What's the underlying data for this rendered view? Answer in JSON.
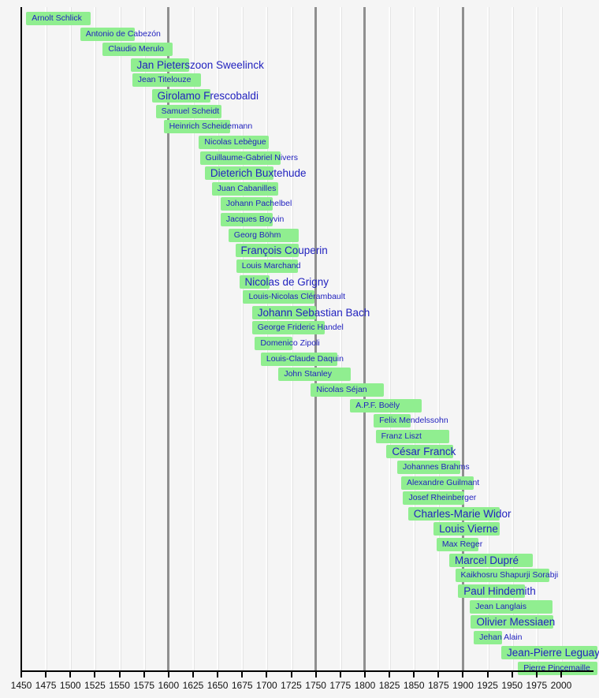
{
  "chart_data": {
    "type": "bar",
    "subtype": "timeline-lifespans",
    "title": "",
    "xlabel": "",
    "ylabel": "",
    "grid": true,
    "x_axis": {
      "start": 1450,
      "end": 2000,
      "step": 25,
      "tick_labels": [
        "1450",
        "1475",
        "1500",
        "1525",
        "1550",
        "1575",
        "1600",
        "1625",
        "1650",
        "1675",
        "1700",
        "1725",
        "1750",
        "1775",
        "1800",
        "1825",
        "1850",
        "1875",
        "1900",
        "1925",
        "1950",
        "1975",
        "2000"
      ]
    },
    "era_divider_years": [
      1600,
      1750,
      1800,
      1900
    ],
    "composers": [
      {
        "name": "Arnolt Schlick",
        "birth": 1455,
        "death": 1521,
        "emphasis": false
      },
      {
        "name": "Antonio de Cabezón",
        "birth": 1510,
        "death": 1566,
        "emphasis": false
      },
      {
        "name": "Claudio Merulo",
        "birth": 1533,
        "death": 1604,
        "emphasis": false
      },
      {
        "name": "Jan Pieterszoon Sweelinck",
        "birth": 1562,
        "death": 1621,
        "emphasis": true
      },
      {
        "name": "Jean Titelouze",
        "birth": 1563,
        "death": 1633,
        "emphasis": false
      },
      {
        "name": "Girolamo Frescobaldi",
        "birth": 1583,
        "death": 1643,
        "emphasis": true
      },
      {
        "name": "Samuel Scheidt",
        "birth": 1587,
        "death": 1654,
        "emphasis": false
      },
      {
        "name": "Heinrich Scheidemann",
        "birth": 1595,
        "death": 1663,
        "emphasis": false
      },
      {
        "name": "Nicolas Lebègue",
        "birth": 1631,
        "death": 1702,
        "emphasis": false
      },
      {
        "name": "Guillaume-Gabriel Nivers",
        "birth": 1632,
        "death": 1714,
        "emphasis": false
      },
      {
        "name": "Dieterich Buxtehude",
        "birth": 1637,
        "death": 1707,
        "emphasis": true
      },
      {
        "name": "Juan Cabanilles",
        "birth": 1644,
        "death": 1712,
        "emphasis": false
      },
      {
        "name": "Johann Pachelbel",
        "birth": 1653,
        "death": 1706,
        "emphasis": false
      },
      {
        "name": "Jacques Boyvin",
        "birth": 1653,
        "death": 1706,
        "emphasis": false
      },
      {
        "name": "Georg Böhm",
        "birth": 1661,
        "death": 1733,
        "emphasis": false
      },
      {
        "name": "François Couperin",
        "birth": 1668,
        "death": 1733,
        "emphasis": true
      },
      {
        "name": "Louis Marchand",
        "birth": 1669,
        "death": 1732,
        "emphasis": false
      },
      {
        "name": "Nicolas de Grigny",
        "birth": 1672,
        "death": 1703,
        "emphasis": true
      },
      {
        "name": "Louis-Nicolas Clérambault",
        "birth": 1676,
        "death": 1749,
        "emphasis": false
      },
      {
        "name": "Johann Sebastian Bach",
        "birth": 1685,
        "death": 1750,
        "emphasis": true
      },
      {
        "name": "George Frideric Handel",
        "birth": 1685,
        "death": 1759,
        "emphasis": false
      },
      {
        "name": "Domenico Zipoli",
        "birth": 1688,
        "death": 1726,
        "emphasis": false
      },
      {
        "name": "Louis-Claude Daquin",
        "birth": 1694,
        "death": 1772,
        "emphasis": false
      },
      {
        "name": "John Stanley",
        "birth": 1712,
        "death": 1786,
        "emphasis": false
      },
      {
        "name": "Nicolas Séjan",
        "birth": 1745,
        "death": 1819,
        "emphasis": false
      },
      {
        "name": "A.P.F. Boëly",
        "birth": 1785,
        "death": 1858,
        "emphasis": false
      },
      {
        "name": "Felix Mendelssohn",
        "birth": 1809,
        "death": 1847,
        "emphasis": false
      },
      {
        "name": "Franz Liszt",
        "birth": 1811,
        "death": 1886,
        "emphasis": false
      },
      {
        "name": "César Franck",
        "birth": 1822,
        "death": 1890,
        "emphasis": true
      },
      {
        "name": "Johannes Brahms",
        "birth": 1833,
        "death": 1897,
        "emphasis": false
      },
      {
        "name": "Alexandre Guilmant",
        "birth": 1837,
        "death": 1911,
        "emphasis": false
      },
      {
        "name": "Josef Rheinberger",
        "birth": 1839,
        "death": 1901,
        "emphasis": false
      },
      {
        "name": "Charles-Marie Widor",
        "birth": 1844,
        "death": 1937,
        "emphasis": true
      },
      {
        "name": "Louis Vierne",
        "birth": 1870,
        "death": 1937,
        "emphasis": true
      },
      {
        "name": "Max Reger",
        "birth": 1873,
        "death": 1916,
        "emphasis": false
      },
      {
        "name": "Marcel Dupré",
        "birth": 1886,
        "death": 1971,
        "emphasis": true
      },
      {
        "name": "Kaikhosru Shapurji Sorabji",
        "birth": 1892,
        "death": 1988,
        "emphasis": false
      },
      {
        "name": "Paul Hindemith",
        "birth": 1895,
        "death": 1963,
        "emphasis": true
      },
      {
        "name": "Jean Langlais",
        "birth": 1907,
        "death": 1991,
        "emphasis": false
      },
      {
        "name": "Olivier Messiaen",
        "birth": 1908,
        "death": 1992,
        "emphasis": true
      },
      {
        "name": "Jehan Alain",
        "birth": 1911,
        "death": 1940,
        "emphasis": false
      },
      {
        "name": "Jean-Pierre Leguay",
        "birth": 1939,
        "death": null,
        "emphasis": true
      },
      {
        "name": "Pierre Pincemaille",
        "birth": 1956,
        "death": null,
        "emphasis": false
      }
    ]
  },
  "colors": {
    "background": "#f5f5f5",
    "bar": "#90ee90",
    "link_text": "#2222bf",
    "era_line": "#8f8f8f",
    "gridline": "#fdfdfd",
    "axis": "#000000"
  }
}
